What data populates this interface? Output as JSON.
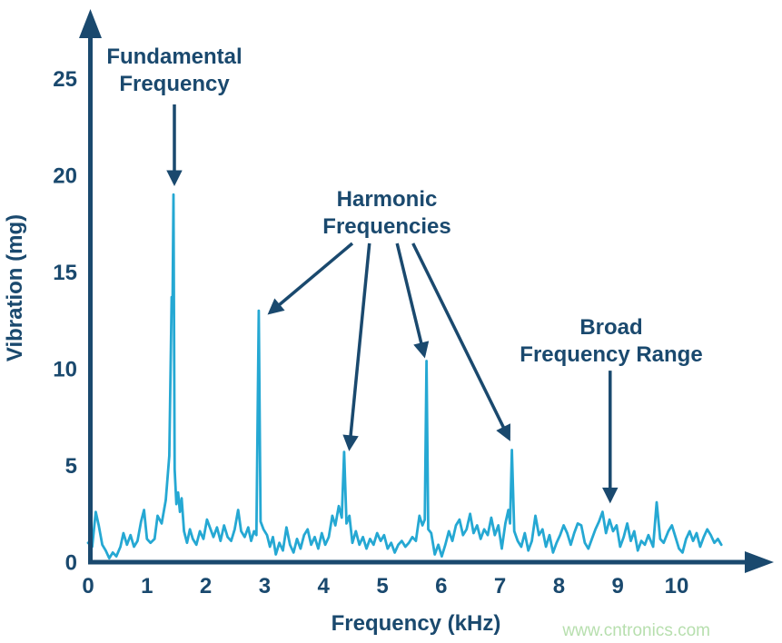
{
  "chart_data": {
    "type": "line",
    "title": "",
    "xlabel": "Frequency (kHz)",
    "ylabel": "Vibration (mg)",
    "xlim": [
      0,
      10.9
    ],
    "ylim": [
      0,
      27
    ],
    "xticks": [
      0,
      1,
      2,
      3,
      4,
      5,
      6,
      7,
      8,
      9,
      10
    ],
    "yticks": [
      0,
      5,
      10,
      15,
      20,
      25
    ],
    "grid": false,
    "legend": false,
    "colors": {
      "line": "#25a8d3",
      "axis": "#1a496e",
      "text": "#1a496e",
      "watermark": "#b7dfae"
    },
    "peaks": {
      "fundamental": {
        "x_khz": 1.45,
        "y_mg": 19.0
      },
      "harmonics": [
        {
          "x_khz": 2.9,
          "y_mg": 13.0
        },
        {
          "x_khz": 4.35,
          "y_mg": 5.7
        },
        {
          "x_khz": 5.75,
          "y_mg": 10.4
        },
        {
          "x_khz": 7.2,
          "y_mg": 5.8
        }
      ]
    },
    "series": [
      {
        "name": "vibration-spectrum",
        "points": [
          [
            0.0,
            1.0
          ],
          [
            0.07,
            0.8
          ],
          [
            0.13,
            2.6
          ],
          [
            0.18,
            1.9
          ],
          [
            0.24,
            0.9
          ],
          [
            0.3,
            0.6
          ],
          [
            0.36,
            0.2
          ],
          [
            0.42,
            0.5
          ],
          [
            0.48,
            0.3
          ],
          [
            0.55,
            0.8
          ],
          [
            0.6,
            1.5
          ],
          [
            0.66,
            0.9
          ],
          [
            0.72,
            1.4
          ],
          [
            0.78,
            0.8
          ],
          [
            0.84,
            1.1
          ],
          [
            0.9,
            2.1
          ],
          [
            0.95,
            2.7
          ],
          [
            1.0,
            1.2
          ],
          [
            1.06,
            1.0
          ],
          [
            1.13,
            1.2
          ],
          [
            1.18,
            2.4
          ],
          [
            1.25,
            2.0
          ],
          [
            1.32,
            3.2
          ],
          [
            1.38,
            5.5
          ],
          [
            1.42,
            13.7
          ],
          [
            1.435,
            13.4
          ],
          [
            1.45,
            19.0
          ],
          [
            1.47,
            4.8
          ],
          [
            1.5,
            3.0
          ],
          [
            1.53,
            3.6
          ],
          [
            1.56,
            2.6
          ],
          [
            1.59,
            3.3
          ],
          [
            1.63,
            1.6
          ],
          [
            1.68,
            1.0
          ],
          [
            1.73,
            1.7
          ],
          [
            1.78,
            1.2
          ],
          [
            1.84,
            0.9
          ],
          [
            1.9,
            1.6
          ],
          [
            1.96,
            1.2
          ],
          [
            2.02,
            2.2
          ],
          [
            2.07,
            1.8
          ],
          [
            2.13,
            1.3
          ],
          [
            2.19,
            1.8
          ],
          [
            2.25,
            1.1
          ],
          [
            2.31,
            1.9
          ],
          [
            2.37,
            1.3
          ],
          [
            2.43,
            1.1
          ],
          [
            2.49,
            1.7
          ],
          [
            2.55,
            2.7
          ],
          [
            2.6,
            1.6
          ],
          [
            2.66,
            1.3
          ],
          [
            2.72,
            1.8
          ],
          [
            2.77,
            1.1
          ],
          [
            2.82,
            1.6
          ],
          [
            2.86,
            1.4
          ],
          [
            2.9,
            13.0
          ],
          [
            2.93,
            2.1
          ],
          [
            2.98,
            1.7
          ],
          [
            3.04,
            1.4
          ],
          [
            3.09,
            0.8
          ],
          [
            3.14,
            1.3
          ],
          [
            3.19,
            0.4
          ],
          [
            3.25,
            1.0
          ],
          [
            3.31,
            0.6
          ],
          [
            3.37,
            1.8
          ],
          [
            3.43,
            0.9
          ],
          [
            3.49,
            0.5
          ],
          [
            3.55,
            1.2
          ],
          [
            3.61,
            0.7
          ],
          [
            3.67,
            1.4
          ],
          [
            3.73,
            1.7
          ],
          [
            3.79,
            0.9
          ],
          [
            3.85,
            1.3
          ],
          [
            3.91,
            0.7
          ],
          [
            3.97,
            1.5
          ],
          [
            4.03,
            0.9
          ],
          [
            4.09,
            1.3
          ],
          [
            4.15,
            2.4
          ],
          [
            4.2,
            1.9
          ],
          [
            4.26,
            2.9
          ],
          [
            4.31,
            2.3
          ],
          [
            4.35,
            5.7
          ],
          [
            4.39,
            2.0
          ],
          [
            4.44,
            2.4
          ],
          [
            4.49,
            1.0
          ],
          [
            4.55,
            1.6
          ],
          [
            4.61,
            0.9
          ],
          [
            4.67,
            1.3
          ],
          [
            4.73,
            0.7
          ],
          [
            4.79,
            1.2
          ],
          [
            4.85,
            0.9
          ],
          [
            4.91,
            1.5
          ],
          [
            4.97,
            1.1
          ],
          [
            5.03,
            1.4
          ],
          [
            5.09,
            0.7
          ],
          [
            5.15,
            1.0
          ],
          [
            5.21,
            0.5
          ],
          [
            5.27,
            0.9
          ],
          [
            5.33,
            1.1
          ],
          [
            5.39,
            0.8
          ],
          [
            5.45,
            1.0
          ],
          [
            5.51,
            1.3
          ],
          [
            5.57,
            1.1
          ],
          [
            5.63,
            2.4
          ],
          [
            5.68,
            1.9
          ],
          [
            5.72,
            2.2
          ],
          [
            5.75,
            10.4
          ],
          [
            5.78,
            1.7
          ],
          [
            5.83,
            1.5
          ],
          [
            5.89,
            0.4
          ],
          [
            5.95,
            0.9
          ],
          [
            6.01,
            0.3
          ],
          [
            6.07,
            0.9
          ],
          [
            6.13,
            1.6
          ],
          [
            6.19,
            1.1
          ],
          [
            6.25,
            1.9
          ],
          [
            6.31,
            2.2
          ],
          [
            6.37,
            1.4
          ],
          [
            6.43,
            1.7
          ],
          [
            6.49,
            2.5
          ],
          [
            6.55,
            1.5
          ],
          [
            6.61,
            1.9
          ],
          [
            6.67,
            1.2
          ],
          [
            6.73,
            1.7
          ],
          [
            6.79,
            1.4
          ],
          [
            6.85,
            2.3
          ],
          [
            6.91,
            1.4
          ],
          [
            6.97,
            1.9
          ],
          [
            7.03,
            0.7
          ],
          [
            7.09,
            2.0
          ],
          [
            7.14,
            2.7
          ],
          [
            7.17,
            2.0
          ],
          [
            7.2,
            5.8
          ],
          [
            7.24,
            1.6
          ],
          [
            7.3,
            1.1
          ],
          [
            7.36,
            0.8
          ],
          [
            7.42,
            1.5
          ],
          [
            7.48,
            0.6
          ],
          [
            7.54,
            1.1
          ],
          [
            7.6,
            2.4
          ],
          [
            7.66,
            1.4
          ],
          [
            7.72,
            1.7
          ],
          [
            7.78,
            0.8
          ],
          [
            7.84,
            1.4
          ],
          [
            7.9,
            0.5
          ],
          [
            7.96,
            1.0
          ],
          [
            8.02,
            1.4
          ],
          [
            8.08,
            1.9
          ],
          [
            8.14,
            1.5
          ],
          [
            8.2,
            0.9
          ],
          [
            8.26,
            1.5
          ],
          [
            8.32,
            2.0
          ],
          [
            8.38,
            1.9
          ],
          [
            8.44,
            1.0
          ],
          [
            8.5,
            0.7
          ],
          [
            8.56,
            1.2
          ],
          [
            8.62,
            1.7
          ],
          [
            8.68,
            2.1
          ],
          [
            8.74,
            2.6
          ],
          [
            8.8,
            1.5
          ],
          [
            8.86,
            2.2
          ],
          [
            8.92,
            1.6
          ],
          [
            8.98,
            1.9
          ],
          [
            9.04,
            0.8
          ],
          [
            9.1,
            1.3
          ],
          [
            9.16,
            2.0
          ],
          [
            9.22,
            1.1
          ],
          [
            9.28,
            1.6
          ],
          [
            9.34,
            0.6
          ],
          [
            9.4,
            1.1
          ],
          [
            9.46,
            0.9
          ],
          [
            9.52,
            1.4
          ],
          [
            9.6,
            0.8
          ],
          [
            9.66,
            3.1
          ],
          [
            9.72,
            1.2
          ],
          [
            9.78,
            1.0
          ],
          [
            9.86,
            1.6
          ],
          [
            9.92,
            1.9
          ],
          [
            9.98,
            1.3
          ],
          [
            10.04,
            0.7
          ],
          [
            10.1,
            0.5
          ],
          [
            10.16,
            1.2
          ],
          [
            10.22,
            1.6
          ],
          [
            10.28,
            1.1
          ],
          [
            10.34,
            1.5
          ],
          [
            10.4,
            0.8
          ],
          [
            10.46,
            1.3
          ],
          [
            10.52,
            1.7
          ],
          [
            10.58,
            1.4
          ],
          [
            10.64,
            1.0
          ],
          [
            10.7,
            1.2
          ],
          [
            10.76,
            0.9
          ]
        ]
      }
    ]
  },
  "annotations": {
    "fundamental": {
      "line1": "Fundamental",
      "line2": "Frequency",
      "arrows": [
        {
          "from": [
            1.466,
            23.66
          ],
          "to": [
            1.466,
            19.6
          ]
        }
      ]
    },
    "harmonic": {
      "line1": "Harmonic",
      "line2": "Frequencies",
      "arrows": [
        {
          "from": [
            4.49,
            16.48
          ],
          "to": [
            3.09,
            12.9
          ]
        },
        {
          "from": [
            4.78,
            16.48
          ],
          "to": [
            4.44,
            5.9
          ]
        },
        {
          "from": [
            5.25,
            16.48
          ],
          "to": [
            5.71,
            10.7
          ]
        },
        {
          "from": [
            5.52,
            16.48
          ],
          "to": [
            7.15,
            6.4
          ]
        }
      ]
    },
    "broad": {
      "line1": "Broad",
      "line2": "Frequency Range",
      "arrows": [
        {
          "from": [
            8.87,
            9.9
          ],
          "to": [
            8.87,
            3.2
          ]
        }
      ]
    }
  },
  "watermark": {
    "text": "www.cntronics.com"
  }
}
